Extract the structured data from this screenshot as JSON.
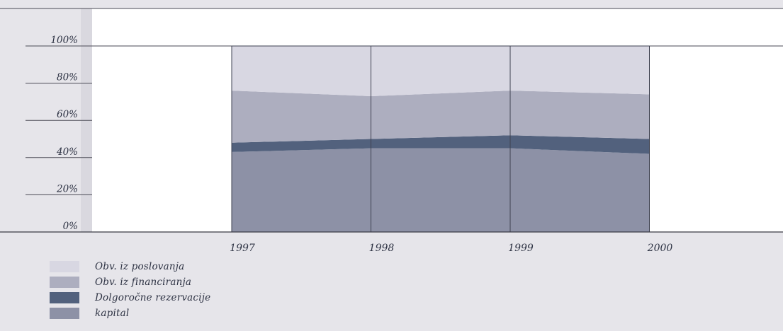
{
  "chart_data": {
    "type": "area",
    "stacked": true,
    "percent": true,
    "title": "",
    "xlabel": "",
    "ylabel": "",
    "categories": [
      "1997",
      "1998",
      "1999",
      "2000"
    ],
    "ylim": [
      0,
      100
    ],
    "yticks": [
      "0%",
      "20%",
      "40%",
      "60%",
      "80%",
      "100%"
    ],
    "series": [
      {
        "name": "kapital",
        "values": [
          43,
          45,
          45,
          42
        ],
        "color": "#8d91a6"
      },
      {
        "name": "Dolgoročne rezervacije",
        "values": [
          5,
          5,
          7,
          8
        ],
        "color": "#52617d"
      },
      {
        "name": "Obv. iz financiranja",
        "values": [
          28,
          23,
          24,
          24
        ],
        "color": "#adaebf"
      },
      {
        "name": "Obv. iz poslovanja",
        "values": [
          24,
          27,
          24,
          26
        ],
        "color": "#d8d7e2"
      }
    ],
    "legend_order": [
      "Obv. iz poslovanja",
      "Obv. iz financiranja",
      "Dolgoročne rezervacije",
      "kapital"
    ],
    "legend_position": "bottom-left",
    "grid": true
  }
}
